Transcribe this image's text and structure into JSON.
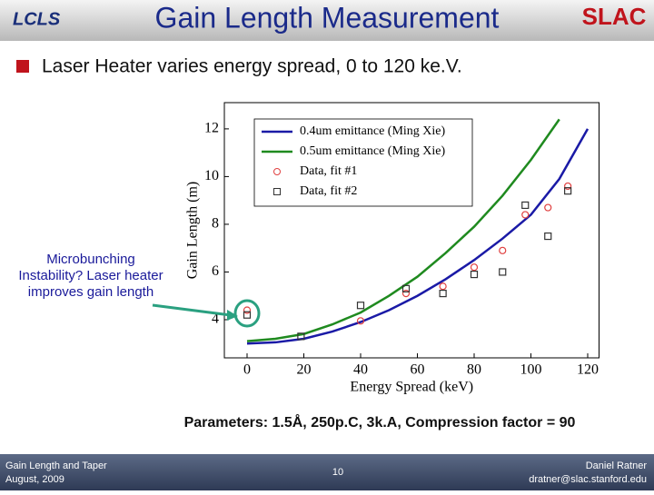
{
  "header": {
    "title": "Gain Length Measurement",
    "left_logo": "LCLS",
    "right_logo": "SLAC"
  },
  "bullet": "Laser Heater varies energy spread, 0 to 120 ke.V.",
  "callout": "Microbunching Instability? Laser heater improves gain length",
  "parameters": "Parameters: 1.5Å, 250p.C, 3k.A, Compression factor = 90",
  "footer": {
    "left": [
      "Gain Length and Taper",
      "August, 2009"
    ],
    "page": "10",
    "right": [
      "Daniel Ratner",
      "dratner@slac.stanford.edu"
    ]
  },
  "chart_data": {
    "type": "line",
    "xlabel": "Energy Spread (keV)",
    "ylabel": "Gain Length (m)",
    "xlim": [
      -8,
      124
    ],
    "ylim": [
      2.4,
      13.1
    ],
    "xticks": [
      0,
      20,
      40,
      60,
      80,
      100,
      120
    ],
    "yticks": [
      4,
      6,
      8,
      10,
      12
    ],
    "series": [
      {
        "name": "0.4um emittance (Ming Xie)",
        "color": "#1a1aa6",
        "style": "line",
        "x": [
          0,
          10,
          20,
          30,
          40,
          50,
          60,
          70,
          80,
          90,
          100,
          110,
          120
        ],
        "values": [
          3.0,
          3.05,
          3.2,
          3.5,
          3.9,
          4.4,
          5.0,
          5.7,
          6.5,
          7.4,
          8.4,
          9.9,
          12.0
        ]
      },
      {
        "name": "0.5um emittance (Ming Xie)",
        "color": "#1f8a1f",
        "style": "line",
        "x": [
          0,
          10,
          20,
          30,
          40,
          50,
          60,
          70,
          80,
          90,
          100,
          110,
          120
        ],
        "values": [
          3.1,
          3.2,
          3.4,
          3.8,
          4.3,
          5.0,
          5.8,
          6.8,
          7.9,
          9.2,
          10.7,
          12.4,
          null
        ]
      },
      {
        "name": "Data, fit #1",
        "color": "#e04040",
        "style": "circle",
        "x": [
          0,
          40,
          56,
          69,
          80,
          90,
          98,
          106,
          113
        ],
        "values": [
          4.4,
          3.95,
          5.1,
          5.4,
          6.2,
          6.9,
          8.4,
          8.7,
          9.6
        ]
      },
      {
        "name": "Data, fit #2",
        "color": "#333333",
        "style": "square",
        "x": [
          0,
          19,
          40,
          56,
          69,
          80,
          90,
          98,
          106,
          113
        ],
        "values": [
          4.2,
          3.3,
          4.6,
          5.3,
          5.1,
          5.9,
          6.0,
          8.8,
          7.5,
          9.4
        ]
      }
    ]
  }
}
